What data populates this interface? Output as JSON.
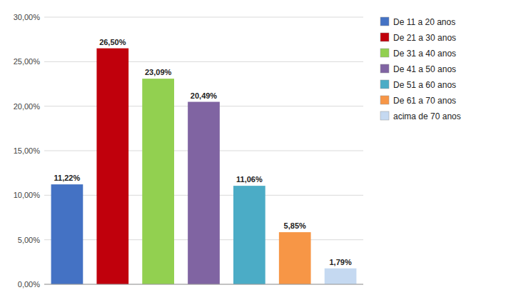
{
  "chart_data": {
    "type": "bar",
    "categories": [
      "De 11 a 20 anos",
      "De 21 a 30 anos",
      "De 31 a 40 anos",
      "De 41 a 50 anos",
      "De 51 a 60 anos",
      "De 61 a 70 anos",
      "acima de 70 anos"
    ],
    "values": [
      11.22,
      26.5,
      23.09,
      20.49,
      11.06,
      5.85,
      1.79
    ],
    "value_labels": [
      "11,22%",
      "26,50%",
      "23,09%",
      "20,49%",
      "11,06%",
      "5,85%",
      "1,79%"
    ],
    "colors": [
      "#4472C4",
      "#C0000C",
      "#92D050",
      "#8064A2",
      "#4BACC6",
      "#F79646",
      "#C5D9F1"
    ],
    "ylim": [
      0,
      30
    ],
    "yticks": [
      {
        "value": 0,
        "label": "0,00%"
      },
      {
        "value": 5,
        "label": "5,00%"
      },
      {
        "value": 10,
        "label": "10,00%"
      },
      {
        "value": 15,
        "label": "15,00%"
      },
      {
        "value": 20,
        "label": "20,00%"
      },
      {
        "value": 25,
        "label": "25,00%"
      },
      {
        "value": 30,
        "label": "30,00%"
      }
    ],
    "grid": true,
    "legend": "right",
    "data_labels": true,
    "tick_labels": "y"
  }
}
